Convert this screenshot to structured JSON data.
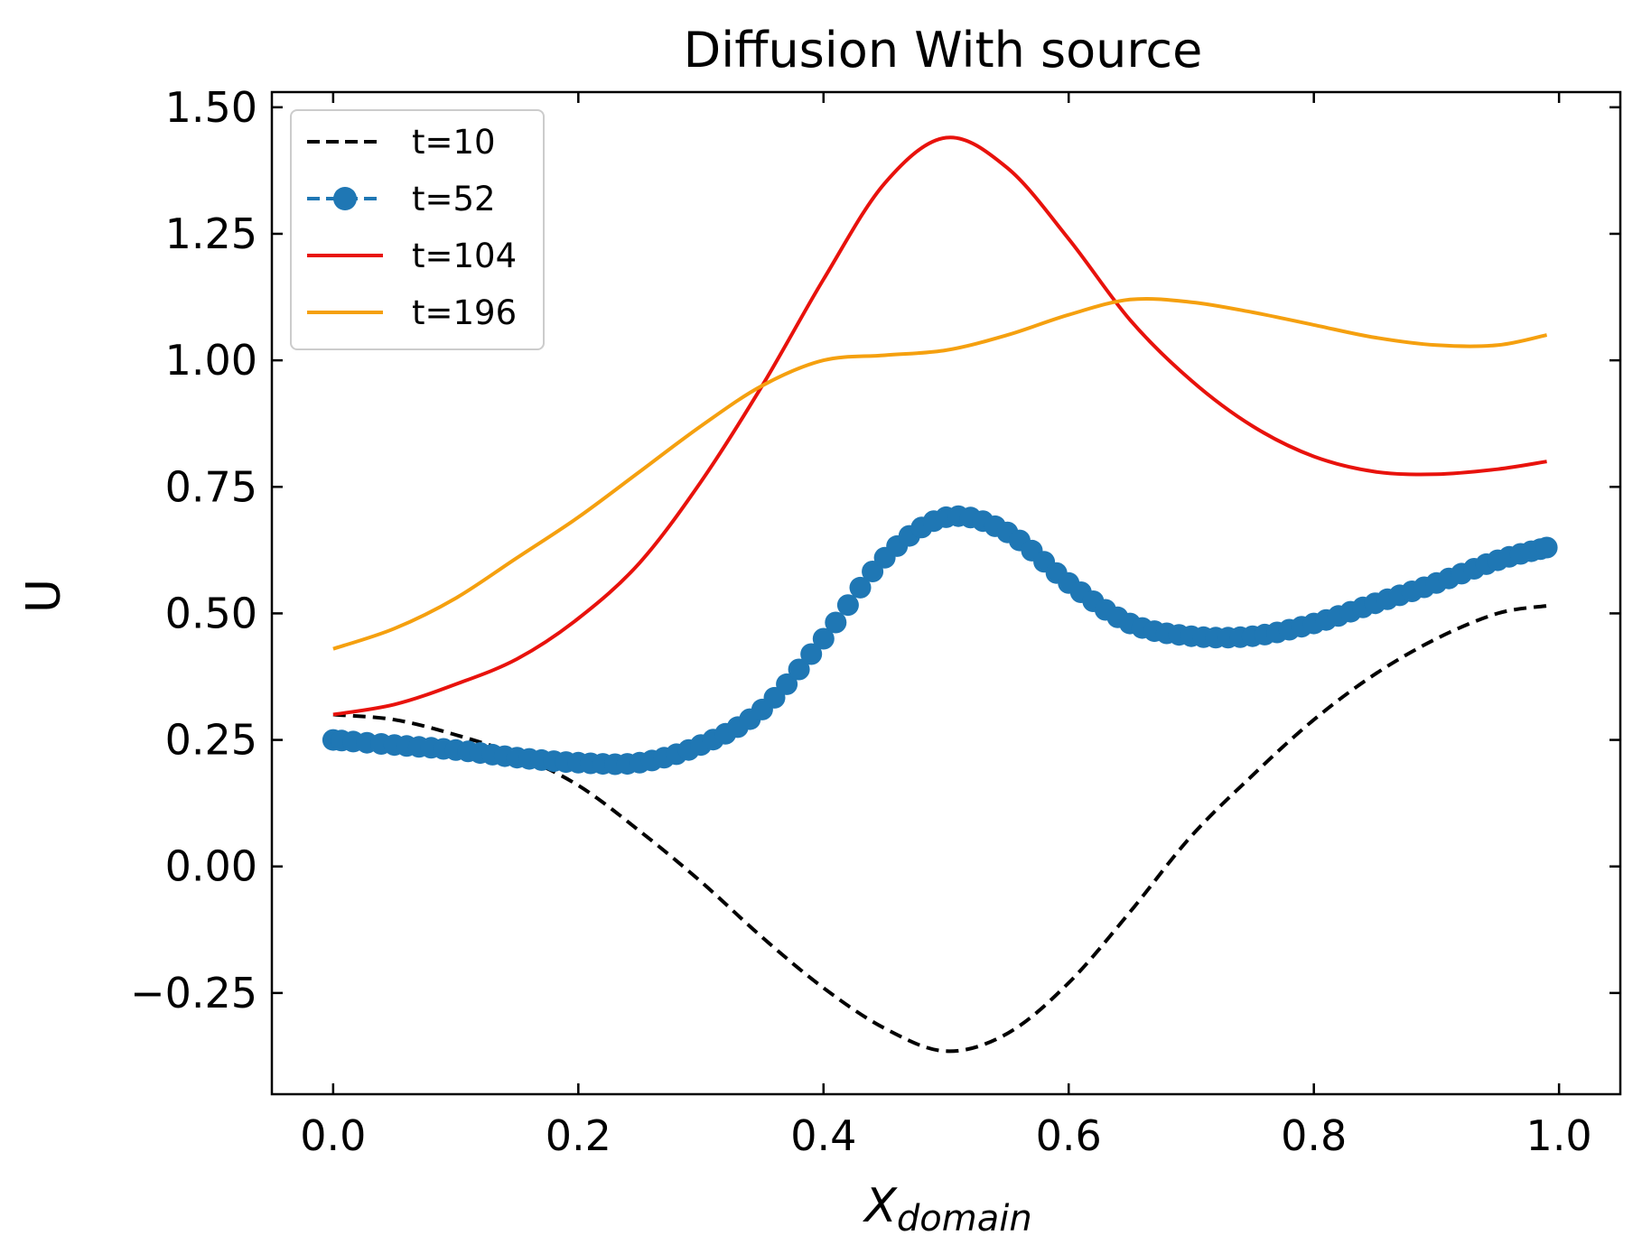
{
  "chart_data": {
    "type": "line",
    "title": "Diffusion With source",
    "xlabel": "X",
    "xlabel_subscript": "domain",
    "ylabel": "U",
    "xlim": [
      -0.05,
      1.05
    ],
    "ylim": [
      -0.45,
      1.53
    ],
    "xticks": [
      0.0,
      0.2,
      0.4,
      0.6,
      0.8,
      1.0
    ],
    "xtick_labels": [
      "0.0",
      "0.2",
      "0.4",
      "0.6",
      "0.8",
      "1.0"
    ],
    "yticks": [
      -0.25,
      0.0,
      0.25,
      0.5,
      0.75,
      1.0,
      1.25,
      1.5
    ],
    "ytick_labels": [
      "−0.25",
      "0.00",
      "0.25",
      "0.50",
      "0.75",
      "1.00",
      "1.25",
      "1.50"
    ],
    "grid": false,
    "legend_position": "top-left",
    "x": [
      0.0,
      0.05,
      0.1,
      0.15,
      0.2,
      0.25,
      0.3,
      0.35,
      0.4,
      0.45,
      0.5,
      0.55,
      0.6,
      0.65,
      0.7,
      0.75,
      0.8,
      0.85,
      0.9,
      0.95,
      0.99
    ],
    "series": [
      {
        "name": "t=10",
        "color": "#000000",
        "style": "dashed",
        "values": [
          0.3,
          0.29,
          0.26,
          0.22,
          0.16,
          0.07,
          -0.03,
          -0.14,
          -0.24,
          -0.32,
          -0.365,
          -0.33,
          -0.23,
          -0.09,
          0.06,
          0.18,
          0.29,
          0.38,
          0.45,
          0.5,
          0.515
        ]
      },
      {
        "name": "t=52",
        "color": "#1f77b4",
        "style": "dashed-marker",
        "values": [
          0.25,
          0.24,
          0.23,
          0.215,
          0.205,
          0.205,
          0.24,
          0.31,
          0.45,
          0.61,
          0.69,
          0.66,
          0.56,
          0.48,
          0.455,
          0.455,
          0.48,
          0.52,
          0.56,
          0.605,
          0.63
        ]
      },
      {
        "name": "t=104",
        "color": "#e8120c",
        "style": "solid",
        "values": [
          0.3,
          0.32,
          0.36,
          0.41,
          0.49,
          0.6,
          0.76,
          0.95,
          1.16,
          1.35,
          1.44,
          1.38,
          1.24,
          1.08,
          0.96,
          0.87,
          0.81,
          0.78,
          0.775,
          0.785,
          0.8
        ]
      },
      {
        "name": "t=196",
        "color": "#f5a00f",
        "style": "solid",
        "values": [
          0.43,
          0.47,
          0.53,
          0.61,
          0.69,
          0.78,
          0.87,
          0.95,
          1.0,
          1.01,
          1.02,
          1.05,
          1.09,
          1.12,
          1.115,
          1.095,
          1.07,
          1.045,
          1.03,
          1.03,
          1.05
        ]
      }
    ]
  }
}
